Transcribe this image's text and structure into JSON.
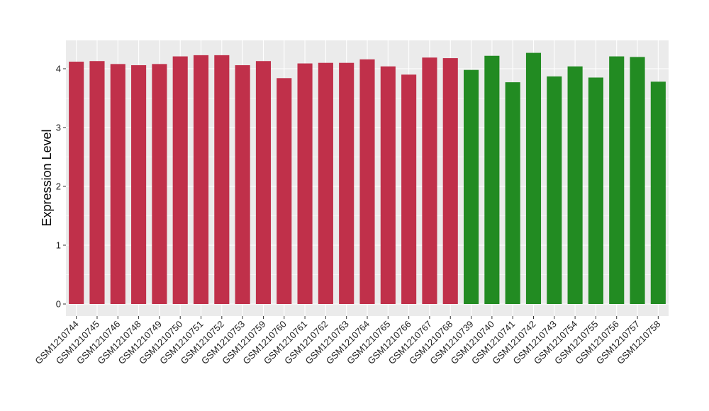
{
  "chart_data": {
    "type": "bar",
    "ylabel": "Expression Level",
    "xlabel": "",
    "ylim": [
      0,
      4.5
    ],
    "yticks": [
      0,
      1,
      2,
      3,
      4
    ],
    "grid": true,
    "panel_background": "#ebebeb",
    "grid_color": "#ffffff",
    "categories": [
      "GSM1210744",
      "GSM1210745",
      "GSM1210746",
      "GSM1210748",
      "GSM1210749",
      "GSM1210750",
      "GSM1210751",
      "GSM1210752",
      "GSM1210753",
      "GSM1210759",
      "GSM1210760",
      "GSM1210761",
      "GSM1210762",
      "GSM1210763",
      "GSM1210764",
      "GSM1210765",
      "GSM1210766",
      "GSM1210767",
      "GSM1210768",
      "GSM1210739",
      "GSM1210740",
      "GSM1210741",
      "GSM1210742",
      "GSM1210743",
      "GSM1210754",
      "GSM1210755",
      "GSM1210756",
      "GSM1210757",
      "GSM1210758"
    ],
    "values": [
      4.12,
      4.13,
      4.08,
      4.06,
      4.08,
      4.21,
      4.23,
      4.23,
      4.06,
      4.13,
      3.84,
      4.09,
      4.1,
      4.1,
      4.16,
      4.04,
      3.9,
      4.19,
      4.18,
      3.98,
      4.22,
      3.77,
      4.27,
      3.87,
      4.04,
      3.85,
      4.21,
      4.2,
      3.78
    ],
    "bar_colors": [
      "#c0304a",
      "#c0304a",
      "#c0304a",
      "#c0304a",
      "#c0304a",
      "#c0304a",
      "#c0304a",
      "#c0304a",
      "#c0304a",
      "#c0304a",
      "#c0304a",
      "#c0304a",
      "#c0304a",
      "#c0304a",
      "#c0304a",
      "#c0304a",
      "#c0304a",
      "#c0304a",
      "#c0304a",
      "#228b22",
      "#228b22",
      "#228b22",
      "#228b22",
      "#228b22",
      "#228b22",
      "#228b22",
      "#228b22",
      "#228b22",
      "#228b22"
    ]
  }
}
